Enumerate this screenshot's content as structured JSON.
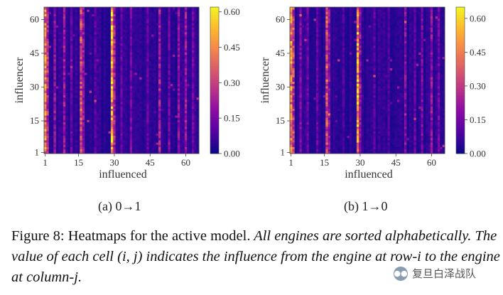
{
  "figure": {
    "caption_lead": "Figure 8: Heatmaps for the active model.",
    "caption_body": " All engines are sorted alphabetically. The value of each cell (i, j) indicates the influence from the engine at row-i to the engine at column-j.",
    "watermark": "复旦白泽战队",
    "watermark_icon": "wechat-icon"
  },
  "chart_data": [
    {
      "type": "heatmap",
      "subcaption": "(a)  0→1",
      "xlabel": "influenced",
      "ylabel": "influencer",
      "x_ticks": [
        "1",
        "15",
        "30",
        "45",
        "60"
      ],
      "y_ticks": [
        "1",
        "15",
        "30",
        "45",
        "60"
      ],
      "xlim": [
        1,
        65
      ],
      "ylim": [
        1,
        65
      ],
      "colorbar": {
        "min": 0.0,
        "max": 0.62,
        "ticks": [
          "0.00",
          "0.15",
          "0.30",
          "0.45",
          "0.60"
        ],
        "colormap": "plasma"
      },
      "strong_columns": [
        {
          "col": 1,
          "value": 0.45
        },
        {
          "col": 2,
          "value": 0.3
        },
        {
          "col": 5,
          "value": 0.2
        },
        {
          "col": 9,
          "value": 0.22
        },
        {
          "col": 12,
          "value": 0.14
        },
        {
          "col": 16,
          "value": 0.35
        },
        {
          "col": 17,
          "value": 0.22
        },
        {
          "col": 22,
          "value": 0.12
        },
        {
          "col": 29,
          "value": 0.55
        },
        {
          "col": 30,
          "value": 0.25
        },
        {
          "col": 33,
          "value": 0.13
        },
        {
          "col": 37,
          "value": 0.16
        },
        {
          "col": 44,
          "value": 0.13
        },
        {
          "col": 49,
          "value": 0.24
        },
        {
          "col": 53,
          "value": 0.15
        },
        {
          "col": 57,
          "value": 0.2
        },
        {
          "col": 60,
          "value": 0.22
        },
        {
          "col": 63,
          "value": 0.15
        }
      ]
    },
    {
      "type": "heatmap",
      "subcaption": "(b)  1→0",
      "xlabel": "influenced",
      "ylabel": "influencer",
      "x_ticks": [
        "1",
        "15",
        "30",
        "45",
        "60"
      ],
      "y_ticks": [
        "1",
        "15",
        "30",
        "45",
        "60"
      ],
      "xlim": [
        1,
        65
      ],
      "ylim": [
        1,
        65
      ],
      "colorbar": {
        "min": 0.0,
        "max": 0.65,
        "ticks": [
          "0.00",
          "0.15",
          "0.30",
          "0.45",
          "0.60"
        ],
        "colormap": "plasma"
      },
      "strong_columns": [
        {
          "col": 1,
          "value": 0.5
        },
        {
          "col": 2,
          "value": 0.35
        },
        {
          "col": 5,
          "value": 0.18
        },
        {
          "col": 8,
          "value": 0.15
        },
        {
          "col": 12,
          "value": 0.14
        },
        {
          "col": 16,
          "value": 0.38
        },
        {
          "col": 17,
          "value": 0.2
        },
        {
          "col": 23,
          "value": 0.1
        },
        {
          "col": 29,
          "value": 0.55
        },
        {
          "col": 30,
          "value": 0.22
        },
        {
          "col": 36,
          "value": 0.12
        },
        {
          "col": 42,
          "value": 0.1
        },
        {
          "col": 49,
          "value": 0.2
        },
        {
          "col": 53,
          "value": 0.14
        },
        {
          "col": 56,
          "value": 0.18
        },
        {
          "col": 60,
          "value": 0.22
        },
        {
          "col": 63,
          "value": 0.16
        }
      ]
    }
  ]
}
